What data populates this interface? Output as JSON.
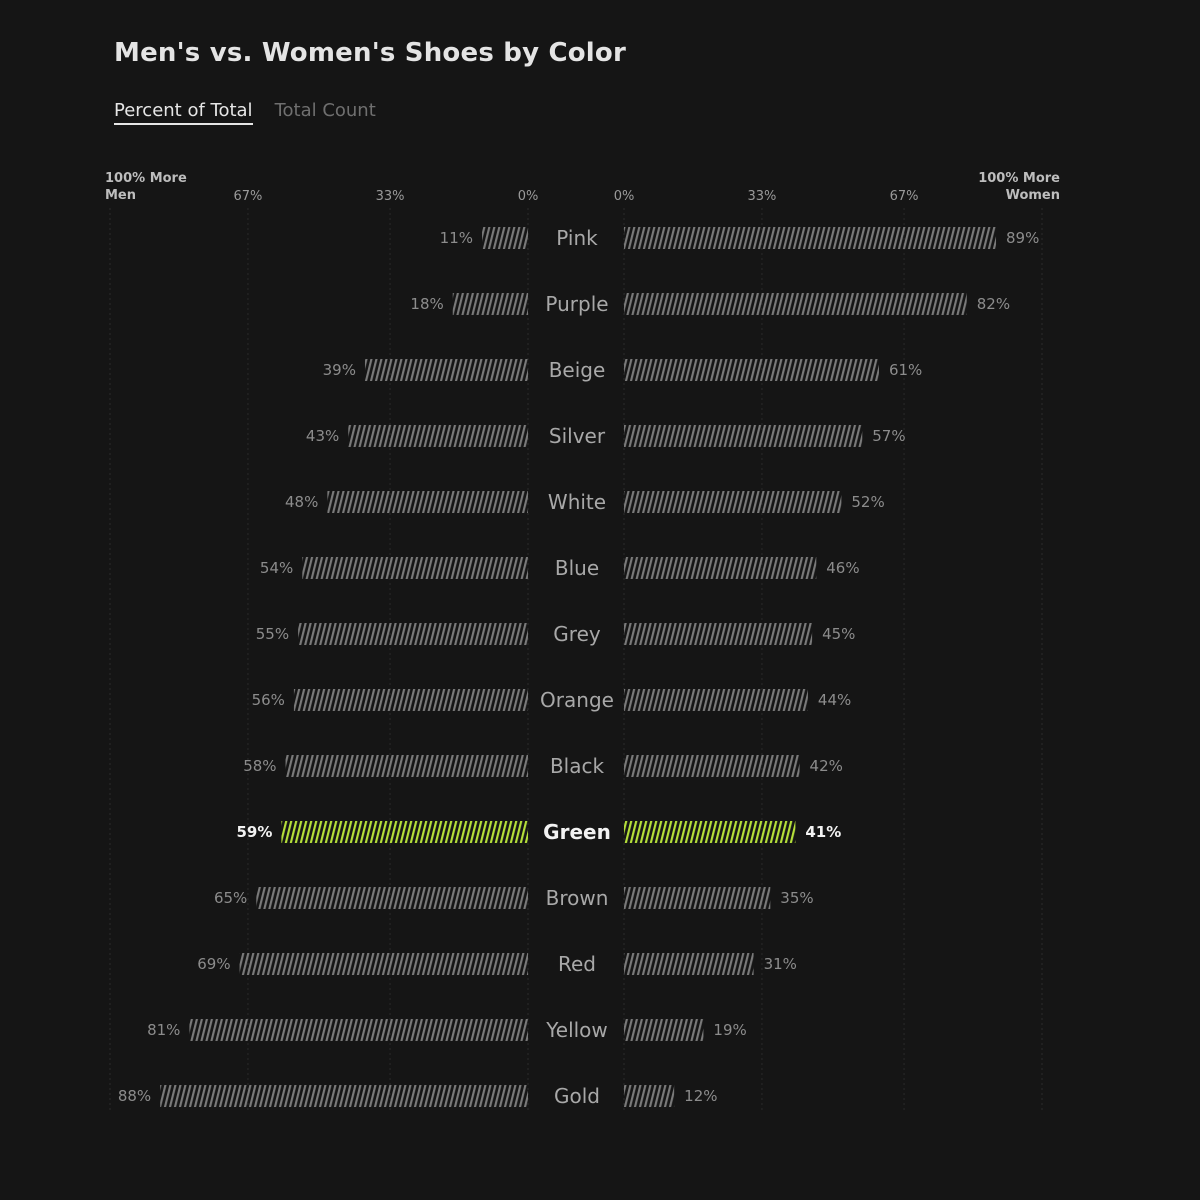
{
  "title": "Men's vs. Women's Shoes by Color",
  "tabs": [
    {
      "label": "Percent of Total",
      "active": true
    },
    {
      "label": "Total Count",
      "active": false
    }
  ],
  "colors": {
    "background": "#151515",
    "bar": "#7a7a7a",
    "highlight": "#b5e03a"
  },
  "chart_data": {
    "type": "bar",
    "orientation": "diverging-horizontal",
    "left_end_label": [
      "100% More",
      "Men"
    ],
    "right_end_label": [
      "100% More",
      "Women"
    ],
    "left_ticks": [
      "67%",
      "33%",
      "0%"
    ],
    "right_ticks": [
      "0%",
      "33%",
      "67%"
    ],
    "xlim": [
      0,
      100
    ],
    "highlight": "Green",
    "grid": true,
    "categories": [
      "Pink",
      "Purple",
      "Beige",
      "Silver",
      "White",
      "Blue",
      "Grey",
      "Orange",
      "Black",
      "Green",
      "Brown",
      "Red",
      "Yellow",
      "Gold"
    ],
    "series": [
      {
        "values": [
          11,
          18,
          39,
          43,
          48,
          54,
          55,
          56,
          58,
          59,
          65,
          69,
          81,
          88
        ]
      },
      {
        "values": [
          89,
          82,
          61,
          57,
          52,
          46,
          45,
          44,
          42,
          41,
          35,
          31,
          19,
          12
        ]
      }
    ]
  }
}
